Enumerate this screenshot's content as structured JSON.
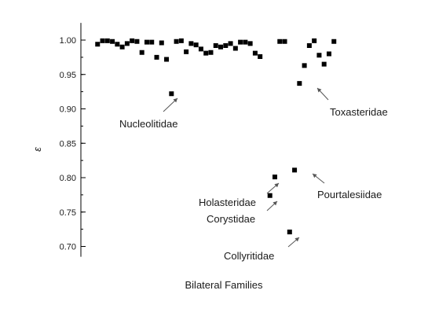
{
  "chart_data": {
    "type": "scatter",
    "xlabel": "Bilateral Families",
    "ylabel": "ε",
    "ylim": [
      0.685,
      1.025
    ],
    "xlim": [
      0,
      65
    ],
    "yticks": [
      "0.70",
      "0.75",
      "0.80",
      "0.85",
      "0.90",
      "0.95",
      "1.00"
    ],
    "grid": false,
    "series": [
      {
        "points": [
          {
            "x": 2,
            "y": 0.994
          },
          {
            "x": 3,
            "y": 0.999
          },
          {
            "x": 4,
            "y": 0.999
          },
          {
            "x": 5,
            "y": 0.998
          },
          {
            "x": 6,
            "y": 0.994
          },
          {
            "x": 7,
            "y": 0.99
          },
          {
            "x": 8,
            "y": 0.995
          },
          {
            "x": 9,
            "y": 0.999
          },
          {
            "x": 10,
            "y": 0.998
          },
          {
            "x": 11,
            "y": 0.982
          },
          {
            "x": 12,
            "y": 0.997
          },
          {
            "x": 13,
            "y": 0.997
          },
          {
            "x": 14,
            "y": 0.975
          },
          {
            "x": 15,
            "y": 0.996
          },
          {
            "x": 16,
            "y": 0.972
          },
          {
            "x": 17,
            "y": 0.922
          },
          {
            "x": 18,
            "y": 0.998
          },
          {
            "x": 19,
            "y": 0.999
          },
          {
            "x": 20,
            "y": 0.983
          },
          {
            "x": 21,
            "y": 0.995
          },
          {
            "x": 22,
            "y": 0.993
          },
          {
            "x": 23,
            "y": 0.987
          },
          {
            "x": 24,
            "y": 0.981
          },
          {
            "x": 25,
            "y": 0.982
          },
          {
            "x": 26,
            "y": 0.992
          },
          {
            "x": 27,
            "y": 0.99
          },
          {
            "x": 28,
            "y": 0.992
          },
          {
            "x": 29,
            "y": 0.995
          },
          {
            "x": 30,
            "y": 0.988
          },
          {
            "x": 31,
            "y": 0.997
          },
          {
            "x": 32,
            "y": 0.997
          },
          {
            "x": 33,
            "y": 0.995
          },
          {
            "x": 34,
            "y": 0.981
          },
          {
            "x": 35,
            "y": 0.976
          },
          {
            "x": 37,
            "y": 0.774
          },
          {
            "x": 38,
            "y": 0.801
          },
          {
            "x": 39,
            "y": 0.998
          },
          {
            "x": 40,
            "y": 0.998
          },
          {
            "x": 41,
            "y": 0.721
          },
          {
            "x": 42,
            "y": 0.811
          },
          {
            "x": 43,
            "y": 0.937
          },
          {
            "x": 44,
            "y": 0.963
          },
          {
            "x": 45,
            "y": 0.992
          },
          {
            "x": 46,
            "y": 0.999
          },
          {
            "x": 47,
            "y": 0.978
          },
          {
            "x": 48,
            "y": 0.965
          },
          {
            "x": 49,
            "y": 0.98
          },
          {
            "x": 50,
            "y": 0.998
          }
        ]
      }
    ],
    "annotations": [
      {
        "text": "Nucleolitidae",
        "x": 17,
        "y": 0.922
      },
      {
        "text": "Toxasteridae",
        "x": 43,
        "y": 0.937
      },
      {
        "text": "Holasteridae",
        "x": 38,
        "y": 0.801
      },
      {
        "text": "Corystidae",
        "x": 37,
        "y": 0.774
      },
      {
        "text": "Pourtalesiidae",
        "x": 42,
        "y": 0.811
      },
      {
        "text": "Collyritidae",
        "x": 41,
        "y": 0.721
      }
    ]
  }
}
